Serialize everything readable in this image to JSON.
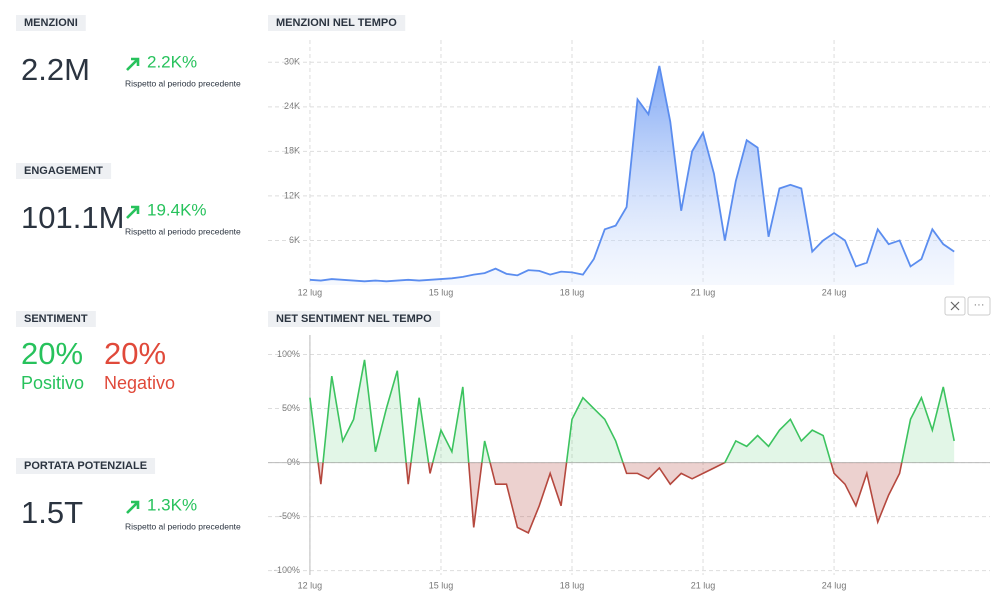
{
  "kpis": [
    {
      "label": "MENZIONI",
      "value": "2.2M",
      "change": "2.2K%",
      "note": "Rispetto al periodo precedente"
    },
    {
      "label": "ENGAGEMENT",
      "value": "101.1M",
      "change": "19.4K%",
      "note": "Rispetto al periodo precedente"
    },
    {
      "label": "PORTATA POTENZIALE",
      "value": "1.5T",
      "change": "1.3K%",
      "note": "Rispetto al periodo precedente"
    }
  ],
  "sentiment": {
    "label": "SENTIMENT",
    "positive_value": "20%",
    "positive_label": "Positivo",
    "negative_value": "20%",
    "negative_label": "Negativo"
  },
  "chart_data": [
    {
      "type": "area",
      "title": "MENZIONI NEL TEMPO",
      "color": "#5b8def",
      "grid": true,
      "x": [
        12,
        12.25,
        12.5,
        12.75,
        13,
        13.25,
        13.5,
        13.75,
        14,
        14.25,
        14.5,
        14.75,
        15,
        15.25,
        15.5,
        15.75,
        16,
        16.25,
        16.5,
        16.75,
        17,
        17.25,
        17.5,
        17.75,
        18,
        18.25,
        18.5,
        18.75,
        19,
        19.25,
        19.5,
        19.75,
        20,
        20.25,
        20.5,
        20.75,
        21,
        21.25,
        21.5,
        21.75,
        22,
        22.25,
        22.5,
        22.75,
        23,
        23.25,
        23.5,
        23.75,
        24,
        24.25,
        24.5,
        24.75,
        25,
        25.25,
        25.5,
        25.75,
        26,
        26.25,
        26.5,
        26.75
      ],
      "values": [
        700,
        600,
        800,
        700,
        600,
        500,
        600,
        500,
        600,
        700,
        600,
        700,
        800,
        900,
        1100,
        1400,
        1600,
        2200,
        1500,
        1300,
        2000,
        1900,
        1400,
        1800,
        1700,
        1400,
        3500,
        7500,
        8000,
        10500,
        25000,
        23000,
        29500,
        22000,
        10000,
        18000,
        20500,
        15000,
        6000,
        14000,
        19500,
        18500,
        6500,
        13000,
        13500,
        13000,
        4500,
        6000,
        7000,
        6000,
        2500,
        3000,
        7500,
        5500,
        6000,
        2500,
        3500,
        7500,
        5500,
        4500
      ],
      "xlim": [
        11.04,
        27.57
      ],
      "xticks": [
        {
          "value": 12,
          "label": "12 lug"
        },
        {
          "value": 15,
          "label": "15 lug"
        },
        {
          "value": 18,
          "label": "18 lug"
        },
        {
          "value": 21,
          "label": "21 lug"
        },
        {
          "value": 24,
          "label": "24 lug"
        }
      ],
      "ylim": [
        0,
        33000
      ],
      "yticks": [
        {
          "value": 6000,
          "label": "6K"
        },
        {
          "value": 12000,
          "label": "12K"
        },
        {
          "value": 18000,
          "label": "18K"
        },
        {
          "value": 24000,
          "label": "24K"
        },
        {
          "value": 30000,
          "label": "30K"
        }
      ]
    },
    {
      "type": "area",
      "title": "NET SENTIMENT NEL TEMPO",
      "positive_color": "#3cc35f",
      "negative_color": "#b5483e",
      "grid": true,
      "x": [
        12,
        12.25,
        12.5,
        12.75,
        13,
        13.25,
        13.5,
        13.75,
        14,
        14.25,
        14.5,
        14.75,
        15,
        15.25,
        15.5,
        15.75,
        16,
        16.25,
        16.5,
        16.75,
        17,
        17.25,
        17.5,
        17.75,
        18,
        18.25,
        18.5,
        18.75,
        19,
        19.25,
        19.5,
        19.75,
        20,
        20.25,
        20.5,
        20.75,
        21,
        21.25,
        21.5,
        21.75,
        22,
        22.25,
        22.5,
        22.75,
        23,
        23.25,
        23.5,
        23.75,
        24,
        24.25,
        24.5,
        24.75,
        25,
        25.25,
        25.5,
        25.75,
        26,
        26.25,
        26.5,
        26.75
      ],
      "values": [
        60,
        -20,
        80,
        20,
        40,
        95,
        10,
        50,
        85,
        -20,
        60,
        -10,
        30,
        10,
        70,
        -60,
        20,
        -20,
        -20,
        -60,
        -65,
        -40,
        -10,
        -40,
        40,
        60,
        50,
        40,
        20,
        -10,
        -10,
        -15,
        -5,
        -20,
        -10,
        -15,
        -10,
        -5,
        0,
        20,
        15,
        25,
        15,
        30,
        40,
        20,
        30,
        25,
        -10,
        -20,
        -40,
        -10,
        -55,
        -30,
        -10,
        40,
        60,
        30,
        70,
        20
      ],
      "xlim": [
        11.04,
        27.57
      ],
      "xticks": [
        {
          "value": 12,
          "label": "12 lug"
        },
        {
          "value": 15,
          "label": "15 lug"
        },
        {
          "value": 18,
          "label": "18 lug"
        },
        {
          "value": 21,
          "label": "21 lug"
        },
        {
          "value": 24,
          "label": "24 lug"
        }
      ],
      "ylim": [
        -104,
        118
      ],
      "yticks": [
        {
          "value": -100,
          "label": "-100%"
        },
        {
          "value": -50,
          "label": "-50%"
        },
        {
          "value": 0,
          "label": "0%"
        },
        {
          "value": 50,
          "label": "50%"
        },
        {
          "value": 100,
          "label": "100%"
        }
      ]
    }
  ]
}
